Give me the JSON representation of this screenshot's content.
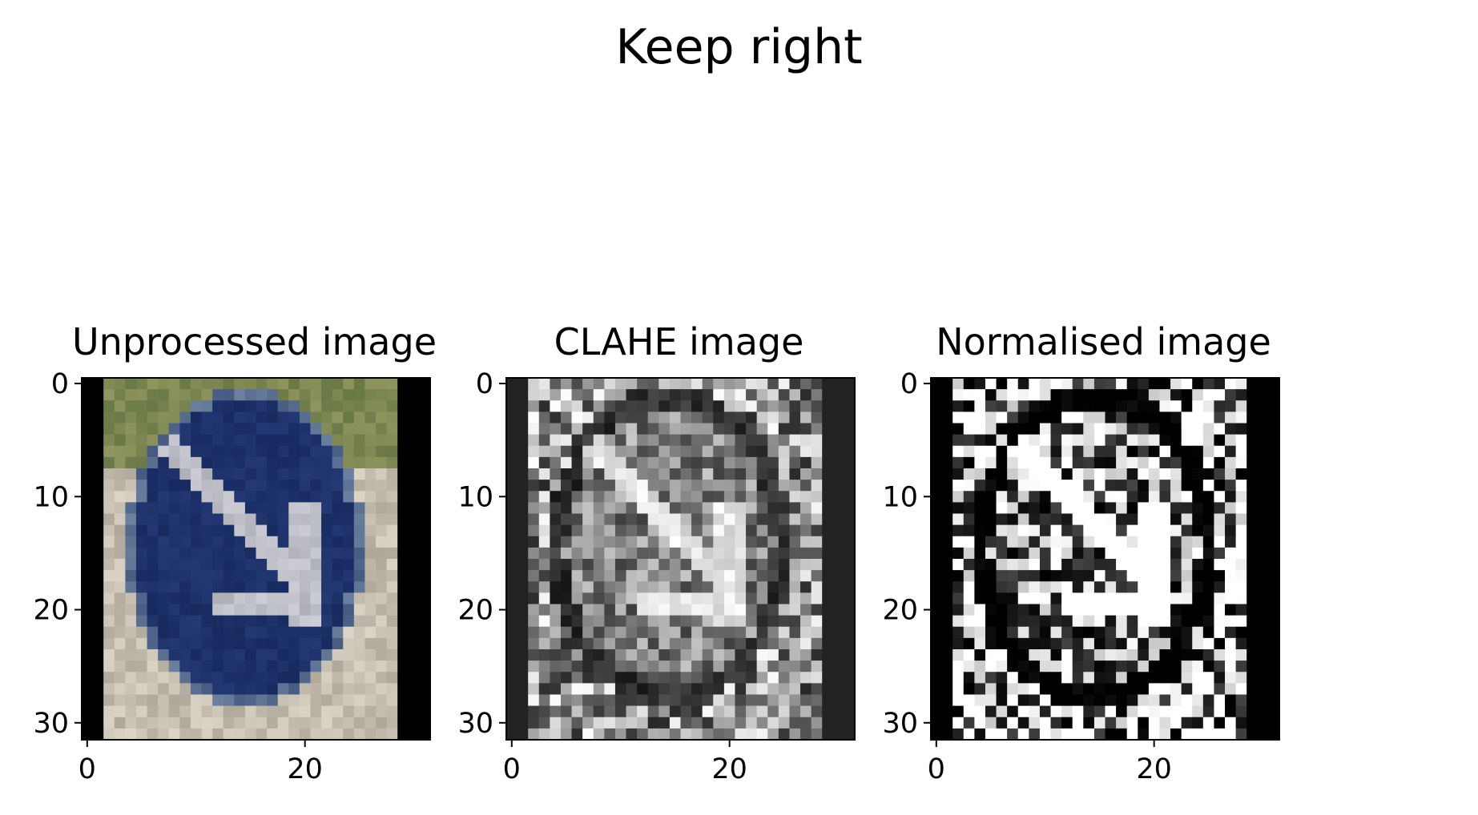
{
  "figure": {
    "title": "Keep right"
  },
  "panels": [
    {
      "title": "Unprocessed image",
      "kind": "color",
      "xticks": [
        "0",
        "20"
      ],
      "yticks": [
        "0",
        "10",
        "20",
        "30"
      ]
    },
    {
      "title": "CLAHE image",
      "kind": "grayscale",
      "xticks": [
        "0",
        "20"
      ],
      "yticks": [
        "0",
        "10",
        "20",
        "30"
      ]
    },
    {
      "title": "Normalised image",
      "kind": "grayscale-high-contrast",
      "xticks": [
        "0",
        "20"
      ],
      "yticks": [
        "0",
        "10",
        "20",
        "30"
      ]
    }
  ],
  "image_grid": {
    "rows": 32,
    "cols": 32
  },
  "colors": {
    "sign_blue": "#1a2f66",
    "sign_blue_dark": "#15285a",
    "arrow_gray": "#b8b8c0",
    "foliage": "#7a8a4a",
    "pavement": "#c8bfae",
    "border": "#000000"
  }
}
